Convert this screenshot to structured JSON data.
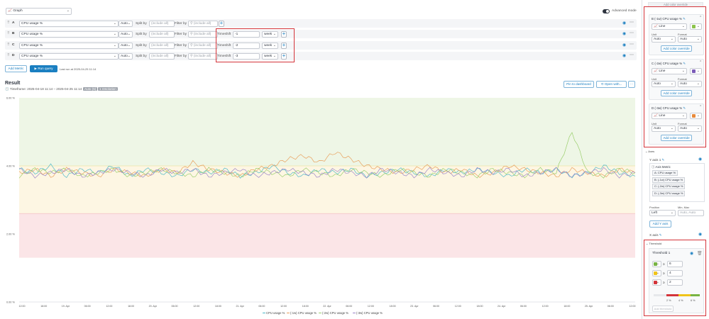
{
  "toolbar": {
    "viz_type": "Graph",
    "advanced_mode_label": "Advanced mode",
    "add_color_override_top": "Add color override"
  },
  "query_rows": [
    {
      "letter": "A",
      "metric": "CPU usage %",
      "agg": "Auto",
      "split_label": "Split by",
      "split_placeholder": "(include all)",
      "filter_label": "Filter by",
      "filter_placeholder": "(include all)",
      "has_timeshift": false
    },
    {
      "letter": "B",
      "metric": "CPU usage %",
      "agg": "Auto",
      "split_label": "Split by",
      "split_placeholder": "(include all)",
      "filter_label": "Filter by",
      "filter_placeholder": "(include all)",
      "has_timeshift": true,
      "timeshift_label": "Timeshift",
      "timeshift_value": "-1",
      "timeshift_unit": "week"
    },
    {
      "letter": "C",
      "metric": "CPU usage %",
      "agg": "Auto",
      "split_label": "Split by",
      "split_placeholder": "(include all)",
      "filter_label": "Filter by",
      "filter_placeholder": "(include all)",
      "has_timeshift": true,
      "timeshift_label": "Timeshift",
      "timeshift_value": "-2",
      "timeshift_unit": "week"
    },
    {
      "letter": "D",
      "metric": "CPU usage %",
      "agg": "Auto",
      "split_label": "Split by",
      "split_placeholder": "(include all)",
      "filter_label": "Filter by",
      "filter_placeholder": "(include all)",
      "has_timeshift": true,
      "timeshift_label": "Timeshift",
      "timeshift_value": "-3",
      "timeshift_unit": "week"
    }
  ],
  "actions": {
    "add_metric": "Add Metric",
    "run_query": "Run query",
    "last_run": "Last run at 2025-04-25 11:14"
  },
  "result": {
    "title": "Result",
    "timeframe": "Timeframe: 2025-04-18 11:14 – 2025-04-25 11:14",
    "badge1": "Auto (5)",
    "badge2": "1 resolution",
    "pin_button": "Pin to dashboard",
    "open_button": "Open with..."
  },
  "chart_data": {
    "type": "line",
    "y_ticks": [
      "6.00 %",
      "4.00 %",
      "2.00 %",
      "0.00 %"
    ],
    "ylim": [
      0,
      6
    ],
    "x_ticks": [
      "12:00",
      "18:00",
      "19. Apr",
      "06:00",
      "12:00",
      "18:00",
      "20. Apr",
      "06:00",
      "12:00",
      "18:00",
      "21. Apr",
      "06:00",
      "12:00",
      "18:00",
      "22. Apr",
      "06:00",
      "12:00",
      "18:00",
      "23. Apr",
      "06:00",
      "12:00",
      "18:00",
      "24. Apr",
      "06:00",
      "12:00",
      "18:00",
      "25. Apr",
      "06:00",
      "12:00"
    ],
    "threshold_bands": [
      {
        "from": 4,
        "to": 6,
        "color": "#eef6e6"
      },
      {
        "from": 2.6,
        "to": 4,
        "color": "#fdf6e3"
      },
      {
        "from": 1.3,
        "to": 2.6,
        "color": "#fbe5e7"
      }
    ],
    "series": [
      {
        "name": "CPU usage %",
        "color": "#4fb9c9",
        "values": [
          3.9,
          3.8,
          4.0,
          3.7,
          3.9,
          3.8,
          4.0,
          3.7,
          3.9,
          3.8,
          3.7,
          3.9,
          3.8,
          3.9,
          3.7,
          3.8,
          4.0,
          3.8,
          3.7,
          3.9,
          3.8,
          3.9,
          3.7,
          3.8,
          3.9,
          3.8,
          3.7,
          3.9,
          3.8,
          3.9,
          3.8,
          3.7,
          3.9,
          3.8,
          3.9,
          3.7,
          3.8,
          4.0,
          3.8,
          3.7
        ]
      },
      {
        "name": "(-1w) CPU usage %",
        "color": "#e8a15e",
        "values": [
          3.8,
          3.9,
          3.7,
          3.9,
          3.8,
          3.7,
          3.9,
          3.8,
          3.7,
          3.9,
          3.8,
          4.1,
          3.9,
          3.8,
          3.7,
          3.9,
          4.0,
          4.2,
          4.3,
          4.1,
          4.4,
          4.2,
          4.0,
          3.9,
          3.8,
          3.9,
          4.0,
          3.8,
          3.9,
          3.7,
          3.8,
          4.0,
          3.9,
          3.8,
          3.7,
          3.9,
          3.8,
          3.7,
          3.9,
          3.8
        ]
      },
      {
        "name": "(-2w) CPU usage %",
        "color": "#9bcf6e",
        "values": [
          3.7,
          3.9,
          3.8,
          3.9,
          3.7,
          3.8,
          3.9,
          3.7,
          3.8,
          3.9,
          3.8,
          3.7,
          3.9,
          3.8,
          3.7,
          3.9,
          3.8,
          3.7,
          3.9,
          3.8,
          3.7,
          3.9,
          3.8,
          3.7,
          3.9,
          3.8,
          3.7,
          3.9,
          3.8,
          3.7,
          3.9,
          3.8,
          3.7,
          3.9,
          3.8,
          5.0,
          3.8,
          3.7,
          3.9,
          3.8
        ]
      },
      {
        "name": "(-3w) CPU usage %",
        "color": "#9d88c9",
        "values": [
          3.9,
          3.7,
          3.8,
          3.9,
          3.7,
          3.8,
          3.9,
          3.8,
          3.7,
          3.9,
          3.8,
          3.9,
          3.7,
          3.8,
          3.9,
          3.7,
          3.8,
          3.9,
          3.8,
          3.7,
          3.9,
          3.8,
          3.7,
          3.9,
          3.8,
          3.7,
          3.9,
          3.8,
          3.7,
          3.9,
          3.8,
          3.9,
          3.7,
          3.8,
          3.9,
          3.7,
          3.8,
          3.9,
          3.7,
          3.8
        ]
      }
    ]
  },
  "legend": [
    {
      "label": "CPU usage %",
      "color": "#4fb9c9"
    },
    {
      "label": "(-1w) CPU usage %",
      "color": "#e8a15e"
    },
    {
      "label": "(-2w) CPU usage %",
      "color": "#9bcf6e"
    },
    {
      "label": "(-3w) CPU usage %",
      "color": "#9d88c9"
    }
  ],
  "series_cards": [
    {
      "title": "B  (-1w) CPU usage %",
      "viz": "Line",
      "unit_label": "Unit",
      "unit": "Auto",
      "format_label": "Format",
      "format": "Auto",
      "override": "Add color override",
      "color": "#8bc34a"
    },
    {
      "title": "C  (-2w) CPU usage %",
      "viz": "Line",
      "unit_label": "Unit",
      "unit": "Auto",
      "format_label": "Format",
      "format": "Auto",
      "override": "Add color override",
      "color": "#7b5cb8"
    },
    {
      "title": "D  (-3w) CPU usage %",
      "viz": "Line",
      "unit_label": "Unit",
      "unit": "Auto",
      "format_label": "Format",
      "format": "Auto",
      "override": "Add color override",
      "color": "#e88a3a"
    }
  ],
  "axes": {
    "section": "Axes",
    "y_axis": "Y axis 1",
    "axis_metric": "Axis Metric",
    "metrics": [
      "A: CPU usage %",
      "B: (-1w) CPU usage %",
      "C: (-2w) CPU usage %",
      "D: (-3w) CPU usage %"
    ],
    "position_label": "Position",
    "position": "Left",
    "minmax_label": "Min, Max",
    "minmax_placeholder": "Auto, Auto",
    "add_y_axis": "Add Y axis",
    "x_axis": "X axis"
  },
  "threshold": {
    "section": "Threshold",
    "title": "Threshold 1",
    "rows": [
      {
        "color": "#78b443",
        "op": "≥",
        "value": "6"
      },
      {
        "color": "#f0c419",
        "op": "≥",
        "value": "4"
      },
      {
        "color": "#d4343a",
        "op": "≥",
        "value": "2"
      }
    ],
    "scale_labels": [
      "2 %",
      "4 %",
      "6 %"
    ],
    "add_threshold": "Add threshold"
  }
}
